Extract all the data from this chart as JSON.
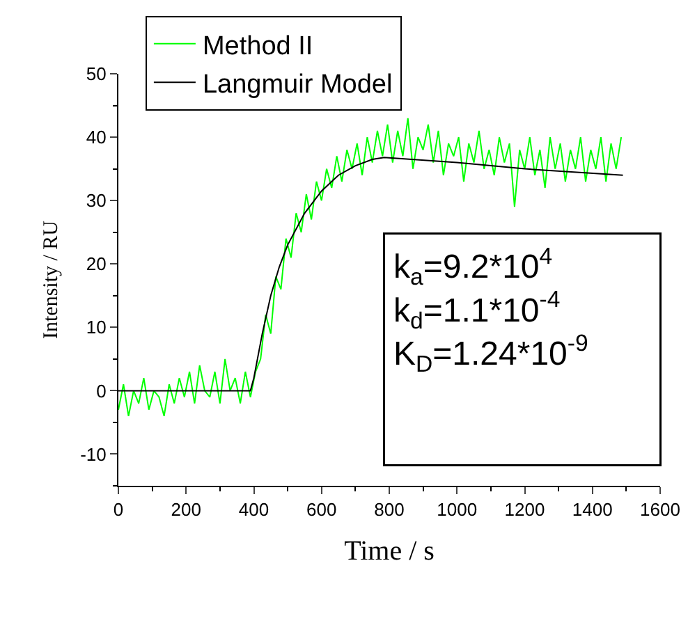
{
  "chart_data": {
    "type": "line",
    "xlabel": "Time / s",
    "ylabel": "Intensity / RU",
    "xlim": [
      0,
      1600
    ],
    "xticks": [
      0,
      200,
      400,
      600,
      800,
      1000,
      1200,
      1400,
      1600
    ],
    "ylim": [
      -15,
      50
    ],
    "yticks": [
      -10,
      0,
      10,
      20,
      30,
      40,
      50
    ],
    "grid": false,
    "legend": "top left",
    "marker": "none",
    "line_style": "solid",
    "annotations": [
      "k$_{a}$=9.2*10$^{4}$",
      "k$_{d}$=1.1*10$^{-4}$",
      "K$_{D}$=1.24*10$^{-9}$"
    ],
    "series": [
      {
        "name": "Method II",
        "color": "#00ff00",
        "x": [
          0,
          15,
          30,
          45,
          60,
          75,
          90,
          105,
          120,
          135,
          150,
          165,
          180,
          195,
          210,
          225,
          240,
          255,
          270,
          285,
          300,
          315,
          330,
          345,
          360,
          375,
          390,
          405,
          420,
          435,
          450,
          465,
          480,
          495,
          510,
          525,
          540,
          555,
          570,
          585,
          600,
          615,
          630,
          645,
          660,
          675,
          690,
          705,
          720,
          735,
          750,
          765,
          780,
          795,
          810,
          825,
          840,
          855,
          870,
          885,
          900,
          915,
          930,
          945,
          960,
          975,
          990,
          1005,
          1020,
          1035,
          1050,
          1065,
          1080,
          1095,
          1110,
          1125,
          1140,
          1155,
          1170,
          1185,
          1200,
          1215,
          1230,
          1245,
          1260,
          1275,
          1290,
          1305,
          1320,
          1335,
          1350,
          1365,
          1380,
          1395,
          1410,
          1425,
          1440,
          1455,
          1470,
          1485
        ],
        "values": [
          -3,
          1,
          -4,
          0,
          -2,
          2,
          -3,
          0,
          -1,
          -4,
          1,
          -2,
          2,
          -1,
          3,
          -2,
          4,
          0,
          -1,
          3,
          -2,
          5,
          0,
          2,
          -2,
          3,
          -1,
          3,
          5,
          12,
          9,
          18,
          16,
          24,
          21,
          28,
          25,
          31,
          27,
          33,
          30,
          35,
          32,
          37,
          33,
          38,
          35,
          39,
          34,
          40,
          36,
          41,
          37,
          42,
          36,
          41,
          37,
          43,
          35,
          40,
          38,
          42,
          36,
          41,
          34,
          39,
          37,
          40,
          33,
          39,
          36,
          41,
          35,
          38,
          34,
          40,
          36,
          39,
          29,
          38,
          35,
          40,
          34,
          38,
          32,
          40,
          35,
          39,
          33,
          38,
          35,
          40,
          33,
          38,
          35,
          40,
          33,
          39,
          35,
          40
        ]
      },
      {
        "name": "Langmuir Model",
        "color": "#000000",
        "x": [
          0,
          390,
          400,
          425,
          450,
          475,
          500,
          550,
          600,
          650,
          700,
          750,
          785,
          1000,
          1200,
          1490
        ],
        "values": [
          0,
          0,
          2,
          9,
          15,
          19.5,
          23,
          28,
          31.5,
          34,
          35.5,
          36.5,
          36.8,
          36,
          35,
          34
        ]
      }
    ]
  }
}
